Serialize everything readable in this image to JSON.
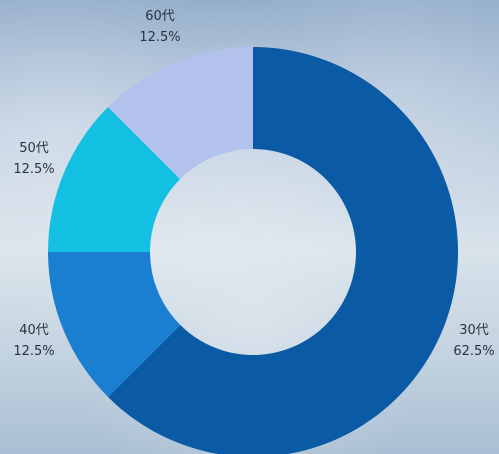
{
  "chart_data": {
    "type": "pie",
    "donut": true,
    "start": "top, clockwise",
    "slices": [
      {
        "category": "30代",
        "value": 62.5,
        "percent_label": "62.5%",
        "color": "#0a5aa5"
      },
      {
        "category": "40代",
        "value": 12.5,
        "percent_label": "12.5%",
        "color": "#1a7fd0"
      },
      {
        "category": "50代",
        "value": 12.5,
        "percent_label": "12.5%",
        "color": "#14c0e2"
      },
      {
        "category": "60代",
        "value": 12.5,
        "percent_label": "12.5%",
        "color": "#b2c2ec"
      }
    ]
  }
}
